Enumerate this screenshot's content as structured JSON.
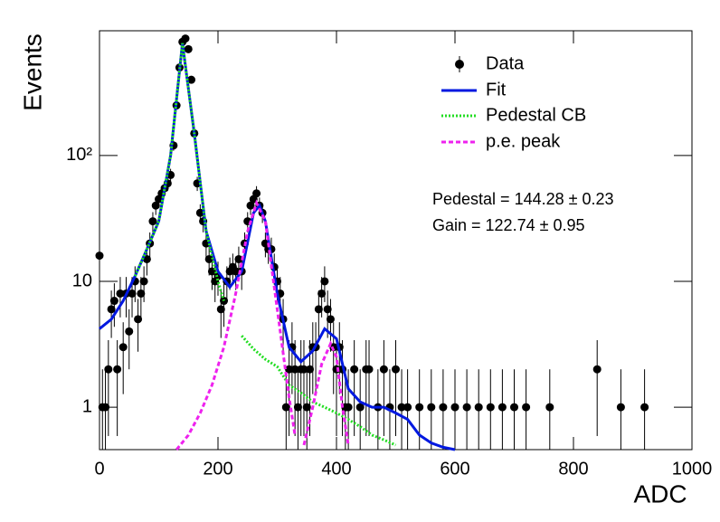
{
  "chart_data": {
    "type": "histogram-fit",
    "x_label": "ADC",
    "y_label": "Events",
    "log_y": true,
    "xlim": [
      0,
      1000
    ],
    "ylim": [
      0.46,
      980
    ],
    "xticks": [
      0,
      200,
      400,
      600,
      800,
      1000
    ],
    "yticks": [
      1,
      10,
      {
        "value": 100,
        "label": "10²"
      }
    ],
    "annotations": [
      "Pedestal = 144.28 ± 0.23",
      "Gain = 122.74 ± 0.95"
    ],
    "data": {
      "name": "Data",
      "color": "#000000",
      "x": [
        0,
        5,
        10,
        15,
        20,
        25,
        30,
        35,
        40,
        45,
        50,
        55,
        60,
        65,
        70,
        75,
        80,
        85,
        90,
        95,
        100,
        105,
        110,
        115,
        120,
        125,
        130,
        135,
        140,
        145,
        150,
        155,
        160,
        165,
        170,
        175,
        180,
        185,
        190,
        195,
        200,
        205,
        210,
        215,
        220,
        225,
        230,
        235,
        240,
        245,
        250,
        255,
        260,
        265,
        270,
        275,
        280,
        285,
        290,
        295,
        300,
        305,
        310,
        315,
        320,
        325,
        330,
        335,
        340,
        345,
        350,
        355,
        360,
        365,
        370,
        375,
        380,
        385,
        390,
        395,
        400,
        405,
        410,
        415,
        420,
        430,
        440,
        450,
        455,
        470,
        480,
        490,
        500,
        510,
        520,
        540,
        560,
        580,
        600,
        620,
        640,
        660,
        680,
        700,
        720,
        760,
        840,
        880,
        920
      ],
      "values": [
        16,
        1,
        1,
        2,
        6,
        7,
        2,
        8,
        3,
        8,
        4,
        8,
        10,
        5,
        8,
        10,
        15,
        20,
        30,
        40,
        45,
        50,
        55,
        60,
        70,
        120,
        250,
        500,
        800,
        850,
        700,
        400,
        150,
        60,
        35,
        30,
        20,
        15,
        12,
        10,
        11,
        6,
        7,
        10,
        12,
        13,
        12,
        15,
        12,
        20,
        30,
        40,
        45,
        50,
        40,
        35,
        20,
        18,
        18,
        13,
        10,
        8,
        5,
        1,
        2,
        3,
        2,
        1,
        2,
        2,
        1,
        2,
        3,
        3,
        6,
        8,
        10,
        6,
        5,
        3,
        2,
        3,
        2,
        1,
        1,
        2,
        1,
        2,
        2,
        1,
        2,
        1,
        2,
        1,
        1,
        1,
        1,
        1,
        1,
        1,
        1,
        1,
        1,
        1,
        1,
        1,
        2,
        1,
        1
      ],
      "errors": [
        4,
        1,
        1,
        1.41,
        2.45,
        2.65,
        1.41,
        2.83,
        1.73,
        2.83,
        2,
        2.83,
        3.16,
        2.24,
        2.83,
        3.16,
        3.87,
        4.47,
        5.48,
        6.32,
        6.71,
        7.07,
        7.42,
        7.75,
        8.37,
        10.95,
        15.81,
        22.36,
        28.28,
        29.15,
        26.46,
        20,
        12.25,
        7.75,
        5.92,
        5.48,
        4.47,
        3.87,
        3.46,
        3.16,
        3.32,
        2.45,
        2.65,
        3.16,
        3.46,
        3.61,
        3.46,
        3.87,
        3.46,
        4.47,
        5.48,
        6.32,
        6.71,
        7.07,
        6.32,
        5.92,
        4.47,
        4.24,
        4.24,
        3.61,
        3.16,
        2.83,
        2.24,
        1,
        1.41,
        1.73,
        1.41,
        1,
        1.41,
        1.41,
        1,
        1.41,
        1.73,
        1.73,
        2.45,
        2.83,
        3.16,
        2.45,
        2.24,
        1.73,
        1.41,
        1.73,
        1.41,
        1,
        1,
        1.41,
        1,
        1.41,
        1.41,
        1,
        1.41,
        1,
        1.41,
        1,
        1,
        1,
        1,
        1,
        1,
        1,
        1,
        1,
        1,
        1,
        1,
        1,
        1.41,
        1,
        1
      ]
    },
    "series": [
      {
        "name": "Fit",
        "color": "#0018e0",
        "style": "solid",
        "x": [
          0,
          20,
          40,
          60,
          80,
          100,
          120,
          140,
          160,
          180,
          200,
          220,
          240,
          260,
          270,
          280,
          300,
          320,
          340,
          360,
          380,
          400,
          420,
          440,
          460,
          480,
          500,
          520,
          540,
          560,
          580,
          600
        ],
        "values": [
          4.2,
          5,
          7,
          11,
          18,
          30,
          100,
          780,
          150,
          25,
          12,
          9,
          12,
          35,
          40,
          30,
          8,
          3,
          2.3,
          2.8,
          4.2,
          3.5,
          1.4,
          1.1,
          1,
          1,
          0.9,
          0.8,
          0.6,
          0.52,
          0.48,
          0.46
        ]
      },
      {
        "name": "Pedestal CB",
        "color": "#22dd22",
        "style": "dotted",
        "x": [
          60,
          80,
          100,
          120,
          140,
          160,
          180,
          200,
          210,
          null,
          240,
          260,
          280,
          300,
          320,
          340,
          360,
          380,
          400,
          420,
          440,
          460,
          480,
          500
        ],
        "values": [
          11,
          18,
          30,
          100,
          780,
          150,
          25,
          10,
          7,
          null,
          3.7,
          2.9,
          2.4,
          2.1,
          1.5,
          1.3,
          1.1,
          1,
          0.9,
          0.8,
          0.7,
          0.6,
          0.55,
          0.5
        ]
      },
      {
        "name": "p.e. peak",
        "color": "#ee22ee",
        "style": "dashed",
        "x": [
          130,
          150,
          170,
          190,
          210,
          230,
          250,
          265,
          280,
          300,
          320,
          330,
          null,
          345,
          360,
          375,
          390,
          400,
          410,
          420
        ],
        "values": [
          0.46,
          0.6,
          0.9,
          1.5,
          3,
          8,
          25,
          42,
          30,
          6,
          1.2,
          0.6,
          null,
          0.5,
          1,
          2.2,
          3.2,
          2.5,
          1,
          0.5
        ]
      }
    ]
  }
}
